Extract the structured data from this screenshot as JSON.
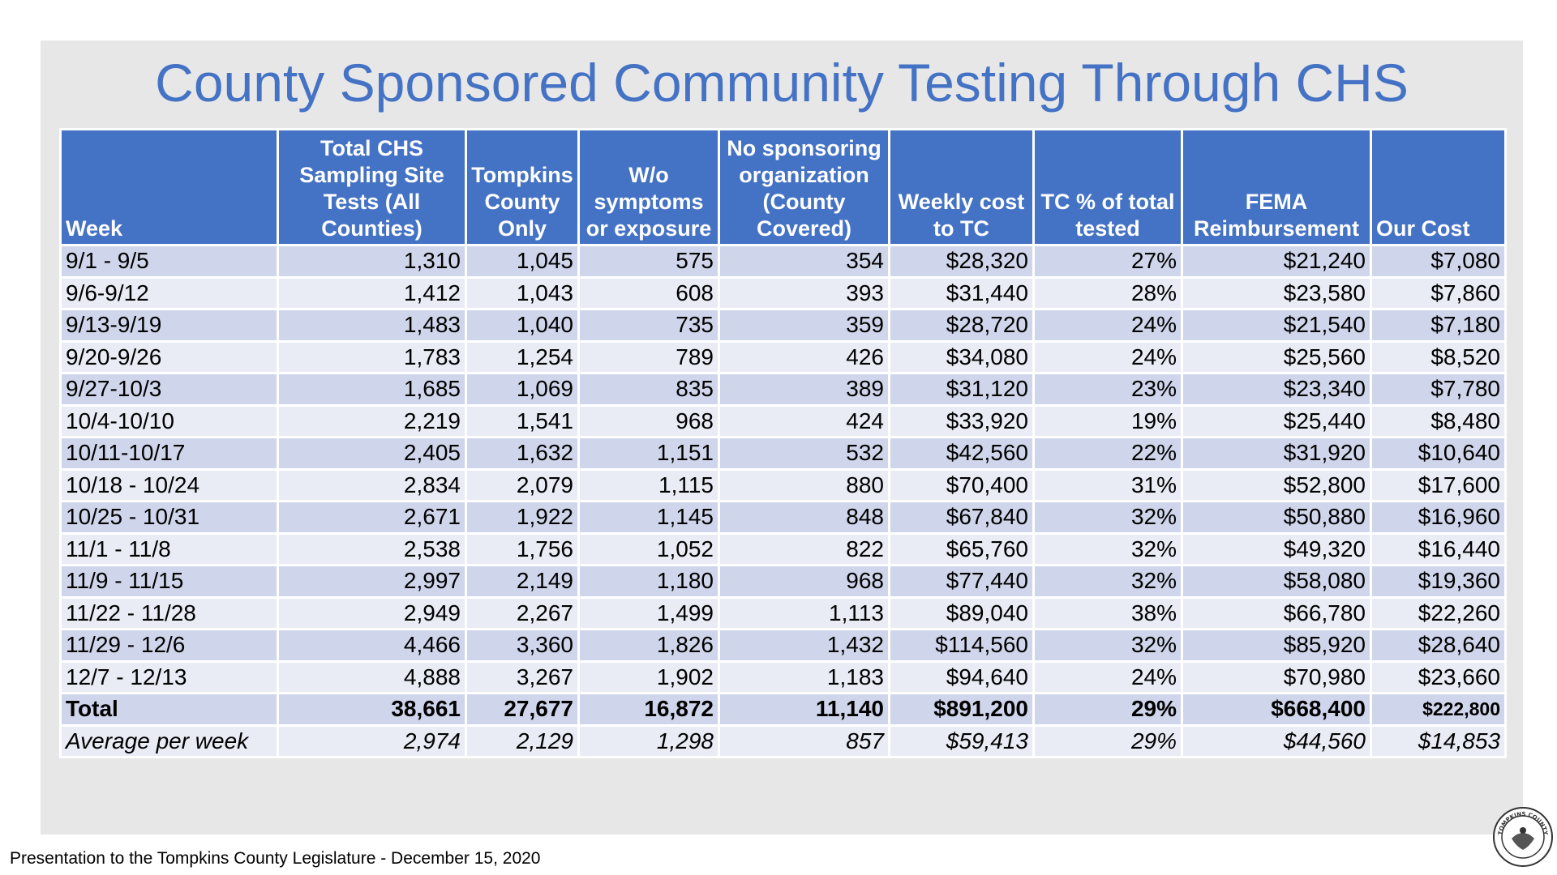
{
  "title": "County Sponsored Community Testing Through CHS",
  "columns": [
    "Week",
    "Total CHS Sampling Site Tests (All Counties)",
    "Tompkins County Only",
    "W/o symptoms or exposure",
    "No sponsoring organization (County Covered)",
    "Weekly cost to TC",
    "TC % of total tested",
    "FEMA Reimbursement",
    "Our Cost"
  ],
  "rows": [
    [
      "9/1 - 9/5",
      "1,310",
      "1,045",
      "575",
      "354",
      "$28,320",
      "27%",
      "$21,240",
      "$7,080"
    ],
    [
      "9/6-9/12",
      "1,412",
      "1,043",
      "608",
      "393",
      "$31,440",
      "28%",
      "$23,580",
      "$7,860"
    ],
    [
      "9/13-9/19",
      "1,483",
      "1,040",
      "735",
      "359",
      "$28,720",
      "24%",
      "$21,540",
      "$7,180"
    ],
    [
      "9/20-9/26",
      "1,783",
      "1,254",
      "789",
      "426",
      "$34,080",
      "24%",
      "$25,560",
      "$8,520"
    ],
    [
      "9/27-10/3",
      "1,685",
      "1,069",
      "835",
      "389",
      "$31,120",
      "23%",
      "$23,340",
      "$7,780"
    ],
    [
      "10/4-10/10",
      "2,219",
      "1,541",
      "968",
      "424",
      "$33,920",
      "19%",
      "$25,440",
      "$8,480"
    ],
    [
      "10/11-10/17",
      "2,405",
      "1,632",
      "1,151",
      "532",
      "$42,560",
      "22%",
      "$31,920",
      "$10,640"
    ],
    [
      "10/18 - 10/24",
      "2,834",
      "2,079",
      "1,115",
      "880",
      "$70,400",
      "31%",
      "$52,800",
      "$17,600"
    ],
    [
      "10/25 - 10/31",
      "2,671",
      "1,922",
      "1,145",
      "848",
      "$67,840",
      "32%",
      "$50,880",
      "$16,960"
    ],
    [
      "11/1 - 11/8",
      "2,538",
      "1,756",
      "1,052",
      "822",
      "$65,760",
      "32%",
      "$49,320",
      "$16,440"
    ],
    [
      "11/9 - 11/15",
      "2,997",
      "2,149",
      "1,180",
      "968",
      "$77,440",
      "32%",
      "$58,080",
      "$19,360"
    ],
    [
      "11/22 - 11/28",
      "2,949",
      "2,267",
      "1,499",
      "1,113",
      "$89,040",
      "38%",
      "$66,780",
      "$22,260"
    ],
    [
      "11/29 - 12/6",
      "4,466",
      "3,360",
      "1,826",
      "1,432",
      "$114,560",
      "32%",
      "$85,920",
      "$28,640"
    ],
    [
      "12/7 - 12/13",
      "4,888",
      "3,267",
      "1,902",
      "1,183",
      "$94,640",
      "24%",
      "$70,980",
      "$23,660"
    ]
  ],
  "total": [
    "Total",
    "38,661",
    "27,677",
    "16,872",
    "11,140",
    "$891,200",
    "29%",
    "$668,400",
    "$222,800"
  ],
  "average": [
    "Average per week",
    "2,974",
    "2,129",
    "1,298",
    "857",
    "$59,413",
    "29%",
    "$44,560",
    "$14,853"
  ],
  "footer": "Presentation to the Tompkins County Legislature - December 15, 2020",
  "seal": {
    "icon": "county-seal-icon",
    "text": "TOMPKINS COUNTY"
  },
  "colors": {
    "header_bg": "#4472c4",
    "title": "#4472c4",
    "row_odd": "#cfd5ea",
    "row_even": "#e9ebf5",
    "panel": "#e7e7e8"
  }
}
